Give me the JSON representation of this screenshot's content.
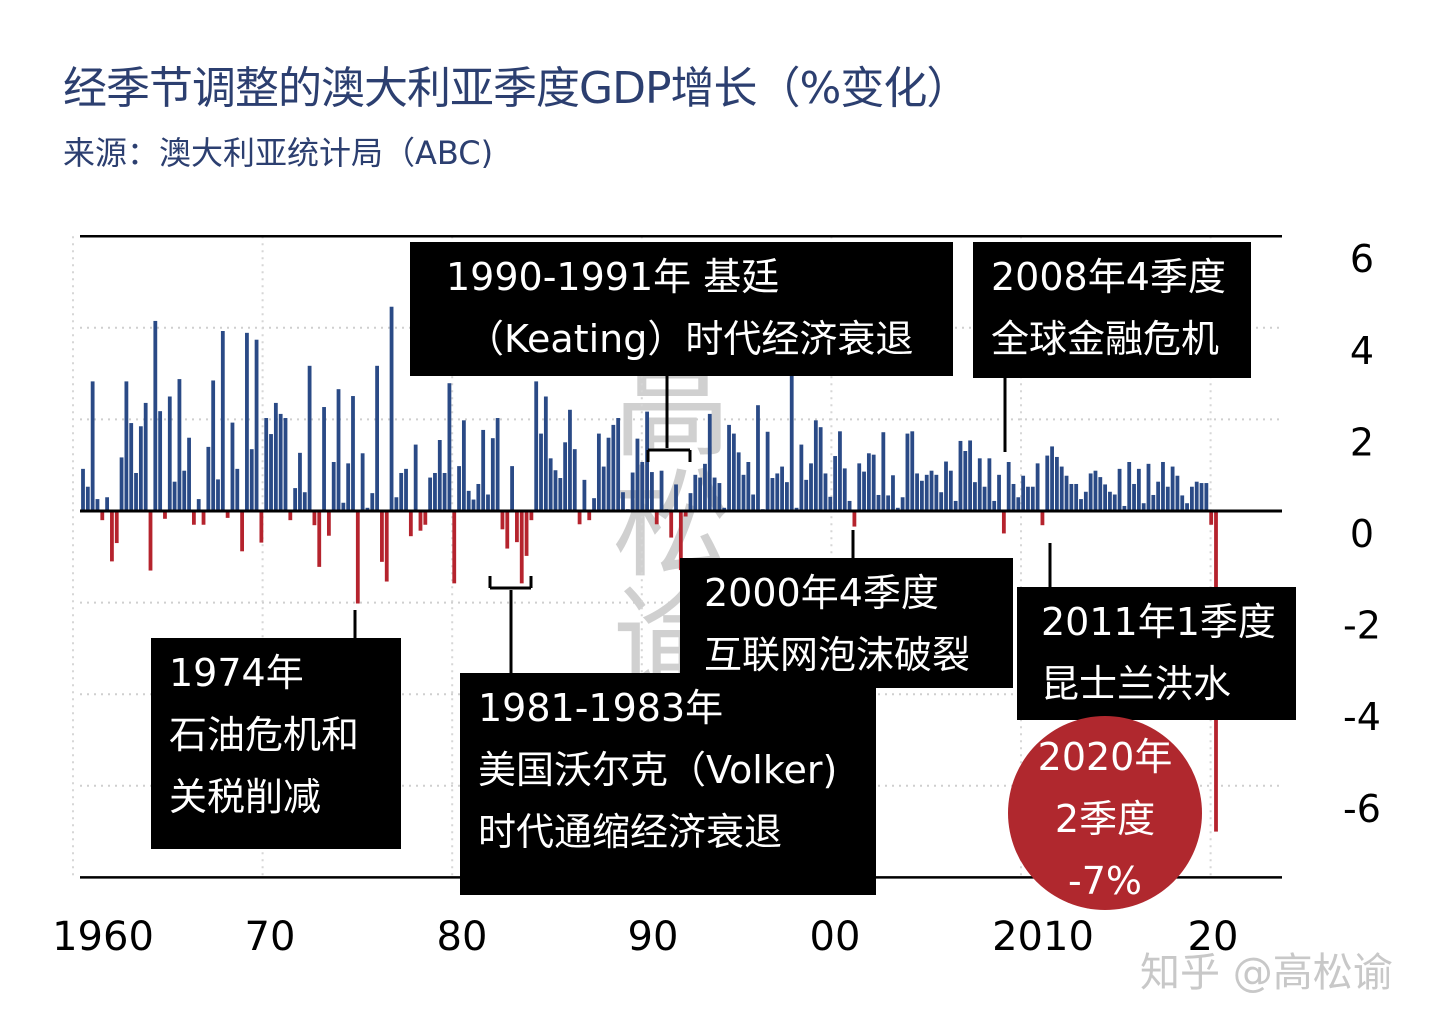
{
  "header": {
    "title": "经季节调整的澳大利亚季度GDP增长（%变化）",
    "subtitle": "来源：澳大利亚统计局（ABC)"
  },
  "colors": {
    "title": "#2c3f70",
    "positive": "#2a4a86",
    "negative": "#b5232d",
    "highlight_circle": "#b0282e",
    "annotation_box": "#000000"
  },
  "chart_data": {
    "type": "bar",
    "title": "经季节调整的澳大利亚季度GDP增长（%变化）",
    "xlabel": "",
    "ylabel": "",
    "frequency": "quarterly",
    "last_period": "2020Q2",
    "ylim": [
      -8,
      6
    ],
    "yticks": [
      6,
      4,
      2,
      0,
      -2,
      -4,
      -6
    ],
    "ytick_labels": [
      "6",
      "4",
      "2",
      "0",
      "-2",
      "-4",
      "-6"
    ],
    "y_axis_side": "right",
    "xticks": [
      1960,
      1970,
      1980,
      1990,
      2000,
      2010,
      2020
    ],
    "xtick_labels": [
      "1960",
      "70",
      "80",
      "90",
      "00",
      "2010",
      "20"
    ],
    "grid": "dotted",
    "values": [
      0.92,
      0.53,
      2.83,
      0.26,
      -0.2,
      0.3,
      -1.1,
      -0.7,
      1.17,
      2.83,
      1.92,
      0.83,
      1.85,
      2.36,
      -1.3,
      4.15,
      2.18,
      -0.17,
      2.5,
      0.64,
      2.88,
      0.88,
      1.6,
      -0.3,
      0.26,
      -0.3,
      1.4,
      2.85,
      0.69,
      3.93,
      -0.15,
      1.93,
      0.92,
      -0.88,
      3.89,
      1.35,
      3.74,
      -0.69,
      2.03,
      1.68,
      2.36,
      2.12,
      2.03,
      -0.2,
      0.5,
      1.27,
      0.41,
      3.17,
      -0.31,
      -1.22,
      2.27,
      -0.54,
      1.07,
      2.66,
      0.18,
      1.04,
      2.51,
      -2.02,
      1.26,
      0.07,
      0.39,
      3.17,
      -1.11,
      -1.54,
      4.46,
      0.3,
      0.83,
      0.92,
      -0.55,
      1.45,
      -0.43,
      -0.3,
      0.73,
      0.83,
      1.55,
      0.83,
      2.79,
      -1.58,
      0.98,
      1.98,
      0.44,
      0.25,
      0.59,
      1.77,
      0.36,
      1.59,
      2.03,
      -0.4,
      -0.82,
      0.98,
      -0.68,
      -1.58,
      -0.98,
      -0.2,
      2.83,
      1.69,
      2.5,
      1.15,
      0.89,
      0.72,
      1.5,
      2.21,
      1.35,
      -0.29,
      0.68,
      -0.2,
      0.28,
      1.69,
      0.97,
      1.6,
      1.88,
      2.03,
      0.41,
      0.04,
      0.84,
      1.58,
      1.07,
      2.17,
      0.85,
      -0.29,
      0.88,
      0.04,
      -0.58,
      0.58,
      -1.29,
      -0.12,
      0.39,
      0.79,
      0.73,
      1.03,
      2.12,
      0.73,
      0.61,
      0.07,
      1.88,
      1.69,
      1.28,
      0.79,
      1.07,
      0.36,
      2.31,
      0.04,
      1.73,
      0.72,
      0.82,
      0.97,
      0.63,
      2.98,
      0.07,
      1.45,
      0.68,
      1.04,
      1.98,
      1.83,
      0.82,
      0.31,
      1.2,
      1.74,
      0.93,
      0.22,
      -0.34,
      1.04,
      0.86,
      1.26,
      1.23,
      0.35,
      1.72,
      0.34,
      0.78,
      0.07,
      0.3,
      1.69,
      1.74,
      0.82,
      0.66,
      0.79,
      0.88,
      0.79,
      0.41,
      1.08,
      0.88,
      0.22,
      1.53,
      1.31,
      1.54,
      0.63,
      1.15,
      0.53,
      1.15,
      0.22,
      0.79,
      -0.49,
      1.07,
      0.59,
      0.3,
      0.77,
      0.53,
      0.53,
      1.04,
      -0.31,
      1.21,
      1.41,
      1.18,
      0.97,
      0.77,
      0.59,
      0.59,
      0.26,
      0.42,
      0.82,
      0.88,
      0.74,
      0.58,
      0.42,
      0.36,
      0.92,
      0.11,
      1.07,
      0.59,
      0.92,
      0.17,
      1.03,
      0.35,
      0.64,
      1.07,
      0.53,
      0.97,
      0.77,
      0.34,
      0.17,
      0.53,
      0.64,
      0.61,
      0.61,
      -0.3,
      -7.0
    ],
    "annotations": [
      {
        "lines": [
          "1990-1991年 基廷",
          "（Keating）时代经济衰退"
        ]
      },
      {
        "lines": [
          "2008年4季度",
          "全球金融危机"
        ]
      },
      {
        "lines": [
          "2000年4季度",
          "互联网泡沫破裂"
        ]
      },
      {
        "lines": [
          "2011年1季度",
          "昆士兰洪水"
        ]
      },
      {
        "lines": [
          "1974年",
          "石油危机和",
          "关税削减"
        ]
      },
      {
        "lines": [
          "1981-1983年",
          "美国沃尔克（Volker)",
          "时代通缩经济衰退"
        ]
      },
      {
        "lines": [
          "2020年",
          "2季度",
          "-7%"
        ]
      }
    ]
  },
  "watermark": {
    "text": "知乎 @高松谕",
    "calligraphy": "高松谕"
  }
}
